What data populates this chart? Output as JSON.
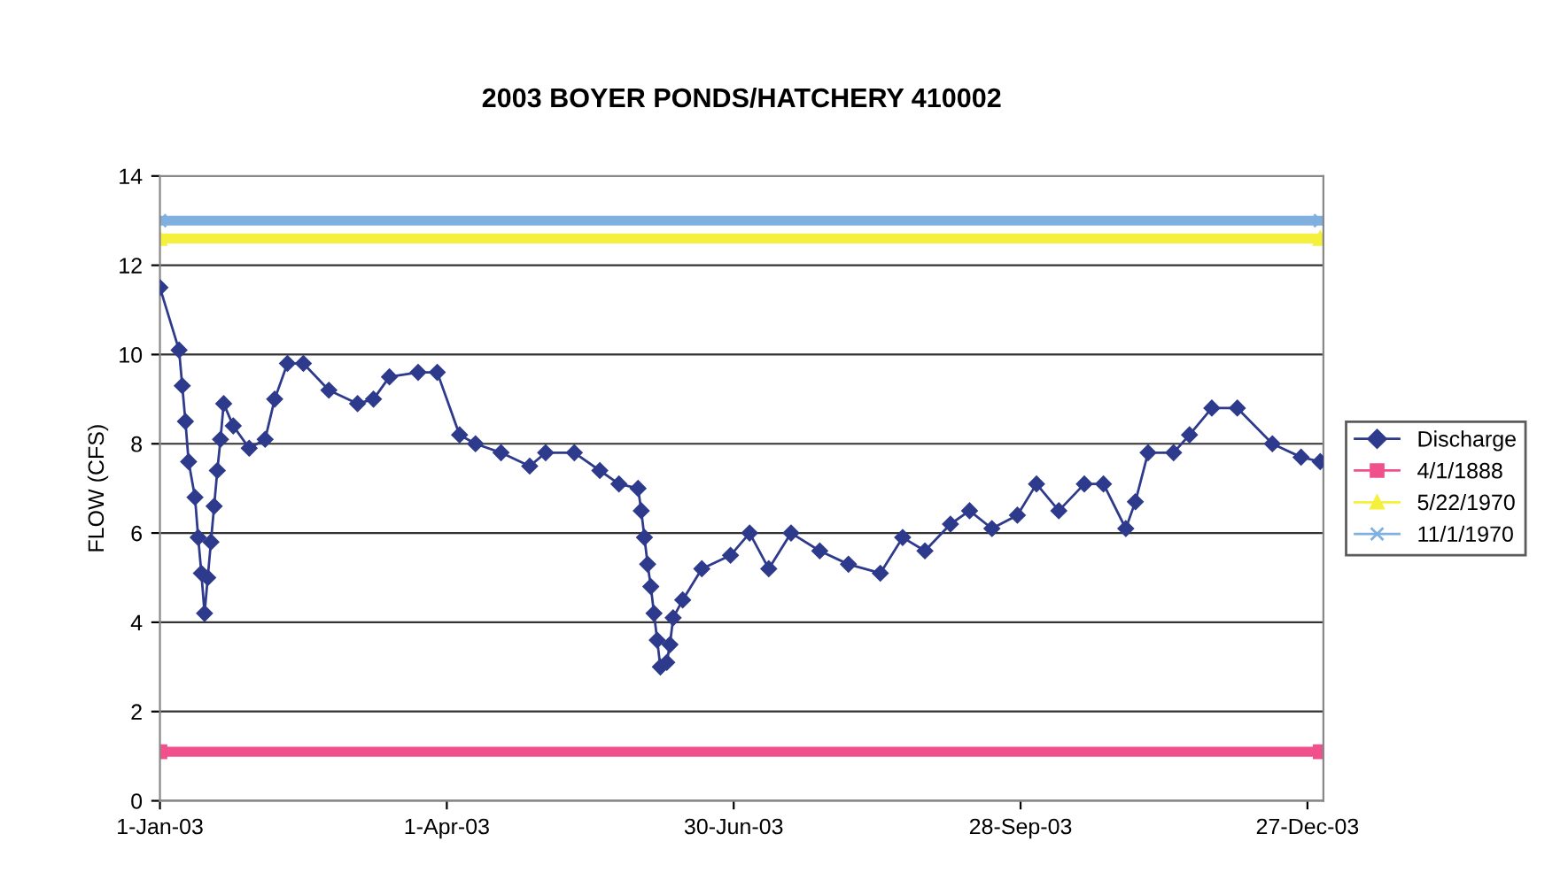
{
  "chart_data": {
    "type": "line",
    "title": "2003 BOYER PONDS/HATCHERY 410002",
    "ylabel": "FLOW (CFS)",
    "xlim": [
      "2003-01-01",
      "2004-01-01"
    ],
    "xticks": [
      {
        "value": "2003-01-01",
        "label": "1-Jan-03"
      },
      {
        "value": "2003-04-01",
        "label": "1-Apr-03"
      },
      {
        "value": "2003-06-30",
        "label": "30-Jun-03"
      },
      {
        "value": "2003-09-28",
        "label": "28-Sep-03"
      },
      {
        "value": "2003-12-27",
        "label": "27-Dec-03"
      }
    ],
    "ylim": [
      0,
      14
    ],
    "yticks": [
      0,
      2,
      4,
      6,
      8,
      10,
      12,
      14
    ],
    "grid": "y",
    "legend": "right",
    "series": [
      {
        "name": "Discharge",
        "color": "#2e3a8c",
        "marker": "diamond",
        "x": [
          "2003-01-01",
          "2003-01-07",
          "2003-01-08",
          "2003-01-09",
          "2003-01-10",
          "2003-01-12",
          "2003-01-13",
          "2003-01-14",
          "2003-01-15",
          "2003-01-16",
          "2003-01-17",
          "2003-01-18",
          "2003-01-19",
          "2003-01-20",
          "2003-01-21",
          "2003-01-24",
          "2003-01-29",
          "2003-02-03",
          "2003-02-06",
          "2003-02-10",
          "2003-02-15",
          "2003-02-23",
          "2003-03-04",
          "2003-03-09",
          "2003-03-14",
          "2003-03-23",
          "2003-03-29",
          "2003-04-05",
          "2003-04-10",
          "2003-04-18",
          "2003-04-27",
          "2003-05-02",
          "2003-05-11",
          "2003-05-19",
          "2003-05-25",
          "2003-05-31",
          "2003-06-01",
          "2003-06-02",
          "2003-06-03",
          "2003-06-04",
          "2003-06-05",
          "2003-06-06",
          "2003-06-07",
          "2003-06-09",
          "2003-06-10",
          "2003-06-11",
          "2003-06-14",
          "2003-06-20",
          "2003-06-29",
          "2003-07-05",
          "2003-07-11",
          "2003-07-18",
          "2003-07-27",
          "2003-08-05",
          "2003-08-15",
          "2003-08-22",
          "2003-08-29",
          "2003-09-06",
          "2003-09-12",
          "2003-09-19",
          "2003-09-27",
          "2003-10-03",
          "2003-10-10",
          "2003-10-18",
          "2003-10-24",
          "2003-10-31",
          "2003-11-03",
          "2003-11-07",
          "2003-11-15",
          "2003-11-20",
          "2003-11-27",
          "2003-12-05",
          "2003-12-16",
          "2003-12-25",
          "2003-12-31"
        ],
        "values": [
          11.5,
          10.1,
          9.3,
          8.5,
          7.6,
          6.8,
          5.9,
          5.1,
          4.2,
          5.0,
          5.8,
          6.6,
          7.4,
          8.1,
          8.9,
          8.4,
          7.9,
          8.1,
          9.0,
          9.8,
          9.8,
          9.2,
          8.9,
          9.0,
          9.5,
          9.6,
          9.6,
          8.2,
          8.0,
          7.8,
          7.5,
          7.8,
          7.8,
          7.4,
          7.1,
          7.0,
          6.5,
          5.9,
          5.3,
          4.8,
          4.2,
          3.6,
          3.0,
          3.1,
          3.5,
          4.1,
          4.5,
          5.2,
          5.5,
          6.0,
          5.2,
          6.0,
          5.6,
          5.3,
          5.1,
          5.9,
          5.6,
          6.2,
          6.5,
          6.1,
          6.4,
          7.1,
          6.5,
          7.1,
          7.1,
          6.1,
          6.7,
          7.8,
          7.8,
          8.2,
          8.8,
          8.8,
          8.0,
          7.7,
          7.6
        ]
      },
      {
        "name": "4/1/1888",
        "color": "#f0508c",
        "marker": "square",
        "x": [
          "2003-01-01",
          "2003-12-31"
        ],
        "values": [
          1.1,
          1.1
        ]
      },
      {
        "name": "5/22/1970",
        "color": "#f5f03c",
        "marker": "triangle",
        "x": [
          "2003-01-01",
          "2003-12-31"
        ],
        "values": [
          12.6,
          12.6
        ]
      },
      {
        "name": "11/1/1970",
        "color": "#7fb0e0",
        "marker": "cross",
        "x": [
          "2003-01-01",
          "2003-12-31"
        ],
        "values": [
          13.0,
          13.0
        ]
      }
    ]
  }
}
